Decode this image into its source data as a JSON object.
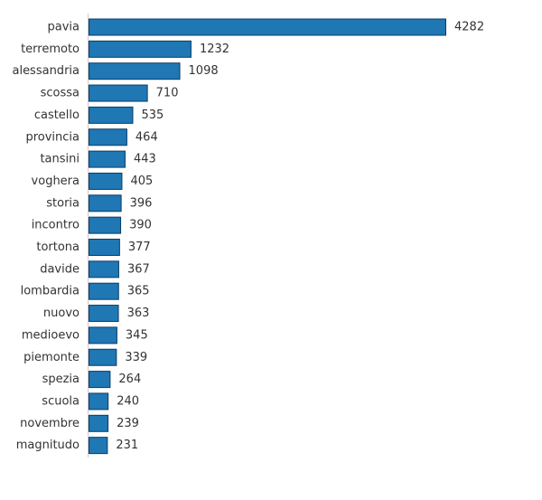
{
  "chart_data": {
    "type": "bar",
    "orientation": "horizontal",
    "categories": [
      "pavia",
      "terremoto",
      "alessandria",
      "scossa",
      "castello",
      "provincia",
      "tansini",
      "voghera",
      "storia",
      "incontro",
      "tortona",
      "davide",
      "lombardia",
      "nuovo",
      "medioevo",
      "piemonte",
      "spezia",
      "scuola",
      "novembre",
      "magnitudo"
    ],
    "values": [
      4282,
      1232,
      1098,
      710,
      535,
      464,
      443,
      405,
      396,
      390,
      377,
      367,
      365,
      363,
      345,
      339,
      264,
      240,
      239,
      231
    ],
    "title": "",
    "xlabel": "",
    "ylabel": "",
    "xlim": [
      0,
      4282
    ],
    "grid": false,
    "legend": "none",
    "bar_color": "#1f77b4",
    "bar_edge_color": "#0d3d66",
    "axis_color": "#cccccc",
    "text_color": "#333333"
  }
}
